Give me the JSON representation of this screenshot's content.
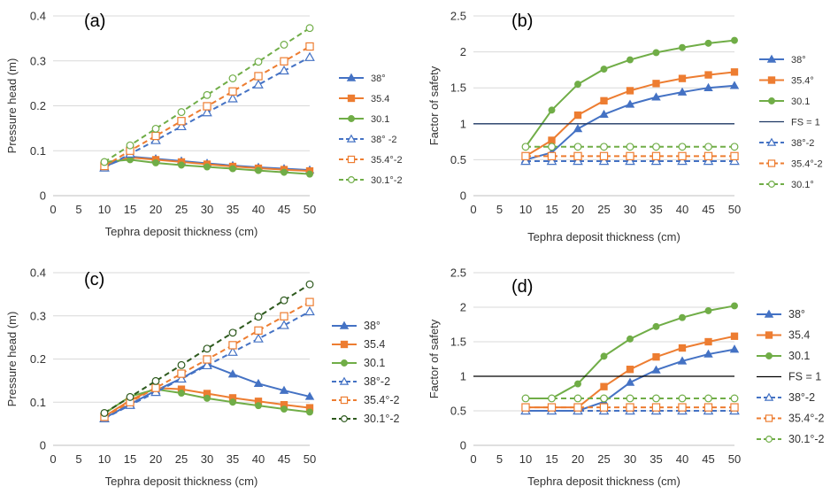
{
  "colors": {
    "blue": "#4472C4",
    "orange": "#ED7D31",
    "green": "#70AD47",
    "darkgreen": "#2E5A1E",
    "navy": "#1F3864",
    "black": "#000000",
    "grid": "#D9D9D9",
    "axis": "#BFBFBF"
  },
  "chart_data": [
    {
      "id": "a",
      "type": "line",
      "panel_label": "(a)",
      "xlabel": "Tephra deposit thickness (cm)",
      "ylabel": "Pressure head (m)",
      "xlim": [
        0,
        50
      ],
      "ylim": [
        0,
        0.4
      ],
      "x_ticks": [
        "0",
        "5",
        "10",
        "15",
        "20",
        "25",
        "30",
        "35",
        "40",
        "45",
        "50"
      ],
      "y_ticks": [
        "0",
        "0.1",
        "0.2",
        "0.3",
        "0.4"
      ],
      "x": [
        10,
        15,
        20,
        25,
        30,
        35,
        40,
        45,
        50
      ],
      "legend_position": "right",
      "series": [
        {
          "name": "38°",
          "color": "blue",
          "dash": false,
          "marker": "triangle",
          "filled": true,
          "values": [
            0.065,
            0.087,
            0.082,
            0.077,
            0.072,
            0.067,
            0.063,
            0.06,
            0.057
          ]
        },
        {
          "name": "35.4",
          "color": "orange",
          "dash": false,
          "marker": "square",
          "filled": true,
          "values": [
            0.07,
            0.085,
            0.08,
            0.075,
            0.07,
            0.065,
            0.061,
            0.058,
            0.055
          ]
        },
        {
          "name": "30.1",
          "color": "green",
          "dash": false,
          "marker": "circle",
          "filled": true,
          "values": [
            0.075,
            0.08,
            0.073,
            0.068,
            0.064,
            0.06,
            0.056,
            0.052,
            0.048
          ]
        },
        {
          "name": "38° -2",
          "color": "blue",
          "dash": true,
          "marker": "triangle",
          "filled": false,
          "values": [
            0.062,
            0.093,
            0.123,
            0.154,
            0.185,
            0.216,
            0.247,
            0.278,
            0.308
          ]
        },
        {
          "name": "35.4°-2",
          "color": "orange",
          "dash": true,
          "marker": "square",
          "filled": false,
          "values": [
            0.066,
            0.1,
            0.133,
            0.166,
            0.199,
            0.232,
            0.266,
            0.299,
            0.332
          ]
        },
        {
          "name": "30.1°-2",
          "color": "green",
          "dash": true,
          "marker": "circle",
          "filled": false,
          "values": [
            0.075,
            0.112,
            0.149,
            0.186,
            0.224,
            0.261,
            0.298,
            0.336,
            0.373
          ]
        }
      ]
    },
    {
      "id": "b",
      "type": "line",
      "panel_label": "(b)",
      "xlabel": "Tephra deposit thickness (cm)",
      "ylabel": "Factor of safety",
      "xlim": [
        0,
        50
      ],
      "ylim": [
        0,
        2.5
      ],
      "x_ticks": [
        "0",
        "5",
        "10",
        "15",
        "20",
        "25",
        "30",
        "35",
        "40",
        "45",
        "50"
      ],
      "y_ticks": [
        "0",
        "0.5",
        "1",
        "1.5",
        "2",
        "2.5"
      ],
      "x": [
        10,
        15,
        20,
        25,
        30,
        35,
        40,
        45,
        50
      ],
      "legend_position": "right",
      "series": [
        {
          "name": "38°",
          "color": "blue",
          "dash": false,
          "marker": "triangle",
          "filled": true,
          "values": [
            0.5,
            0.6,
            0.93,
            1.13,
            1.27,
            1.37,
            1.44,
            1.5,
            1.53
          ]
        },
        {
          "name": "35.4°",
          "color": "orange",
          "dash": false,
          "marker": "square",
          "filled": true,
          "values": [
            0.55,
            0.77,
            1.12,
            1.32,
            1.46,
            1.56,
            1.63,
            1.68,
            1.72
          ]
        },
        {
          "name": "30.1",
          "color": "green",
          "dash": false,
          "marker": "circle",
          "filled": true,
          "values": [
            0.68,
            1.19,
            1.55,
            1.76,
            1.89,
            1.99,
            2.06,
            2.12,
            2.16
          ]
        },
        {
          "name": "FS = 1",
          "color": "navy",
          "dash": false,
          "marker": "none",
          "filled": false,
          "values": [
            1,
            1,
            1,
            1,
            1,
            1,
            1,
            1,
            1
          ]
        },
        {
          "name": "38°-2",
          "color": "blue",
          "dash": true,
          "marker": "triangle",
          "filled": false,
          "values": [
            0.48,
            0.48,
            0.48,
            0.48,
            0.48,
            0.48,
            0.48,
            0.48,
            0.48
          ]
        },
        {
          "name": "35.4°-2",
          "color": "orange",
          "dash": true,
          "marker": "square",
          "filled": false,
          "values": [
            0.55,
            0.55,
            0.55,
            0.55,
            0.55,
            0.55,
            0.55,
            0.55,
            0.55
          ]
        },
        {
          "name": "30.1°",
          "color": "green",
          "dash": true,
          "marker": "circle",
          "filled": false,
          "values": [
            0.68,
            0.68,
            0.68,
            0.68,
            0.68,
            0.68,
            0.68,
            0.68,
            0.68
          ]
        }
      ]
    },
    {
      "id": "c",
      "type": "line",
      "panel_label": "(c)",
      "xlabel": "Tephra deposit thickness (cm)",
      "ylabel": "Pressure head (m)",
      "xlim": [
        0,
        50
      ],
      "ylim": [
        0,
        0.4
      ],
      "x_ticks": [
        "0",
        "5",
        "10",
        "15",
        "20",
        "25",
        "30",
        "35",
        "40",
        "45",
        "50"
      ],
      "y_ticks": [
        "0",
        "0.1",
        "0.2",
        "0.3",
        "0.4"
      ],
      "x": [
        10,
        15,
        20,
        25,
        30,
        35,
        40,
        45,
        50
      ],
      "legend_position": "right",
      "series": [
        {
          "name": "38°",
          "color": "blue",
          "dash": false,
          "marker": "triangle",
          "filled": true,
          "values": [
            0.063,
            0.095,
            0.127,
            0.155,
            0.188,
            0.165,
            0.143,
            0.127,
            0.113
          ]
        },
        {
          "name": "35.4",
          "color": "orange",
          "dash": false,
          "marker": "square",
          "filled": true,
          "values": [
            0.067,
            0.104,
            0.133,
            0.13,
            0.12,
            0.11,
            0.102,
            0.094,
            0.087
          ]
        },
        {
          "name": "30.1",
          "color": "green",
          "dash": false,
          "marker": "circle",
          "filled": true,
          "values": [
            0.074,
            0.113,
            0.13,
            0.121,
            0.109,
            0.1,
            0.092,
            0.084,
            0.077
          ]
        },
        {
          "name": "38°-2",
          "color": "blue",
          "dash": true,
          "marker": "triangle",
          "filled": false,
          "values": [
            0.062,
            0.093,
            0.123,
            0.154,
            0.185,
            0.216,
            0.247,
            0.278,
            0.31
          ]
        },
        {
          "name": "35.4°-2",
          "color": "orange",
          "dash": true,
          "marker": "square",
          "filled": false,
          "values": [
            0.066,
            0.1,
            0.133,
            0.166,
            0.199,
            0.232,
            0.266,
            0.299,
            0.332
          ]
        },
        {
          "name": "30.1°-2",
          "color": "darkgreen",
          "dash": true,
          "marker": "circle",
          "filled": false,
          "values": [
            0.075,
            0.112,
            0.149,
            0.186,
            0.224,
            0.261,
            0.298,
            0.336,
            0.373
          ]
        }
      ]
    },
    {
      "id": "d",
      "type": "line",
      "panel_label": "(d)",
      "xlabel": "Tephra deposit thickness (cm)",
      "ylabel": "Factor of safety",
      "xlim": [
        0,
        50
      ],
      "ylim": [
        0,
        2.5
      ],
      "x_ticks": [
        "0",
        "5",
        "10",
        "15",
        "20",
        "25",
        "30",
        "35",
        "40",
        "45",
        "50"
      ],
      "y_ticks": [
        "0",
        "0.5",
        "1",
        "1.5",
        "2",
        "2.5"
      ],
      "x": [
        10,
        15,
        20,
        25,
        30,
        35,
        40,
        45,
        50
      ],
      "legend_position": "right",
      "series": [
        {
          "name": "38°",
          "color": "blue",
          "dash": false,
          "marker": "triangle",
          "filled": true,
          "values": [
            0.5,
            0.5,
            0.5,
            0.63,
            0.91,
            1.09,
            1.22,
            1.32,
            1.39
          ]
        },
        {
          "name": "35.4",
          "color": "orange",
          "dash": false,
          "marker": "square",
          "filled": true,
          "values": [
            0.55,
            0.55,
            0.55,
            0.85,
            1.1,
            1.28,
            1.41,
            1.5,
            1.58
          ]
        },
        {
          "name": "30.1",
          "color": "green",
          "dash": false,
          "marker": "circle",
          "filled": true,
          "values": [
            0.68,
            0.68,
            0.89,
            1.29,
            1.54,
            1.72,
            1.85,
            1.95,
            2.02
          ]
        },
        {
          "name": "FS = 1",
          "color": "black",
          "dash": false,
          "marker": "none",
          "filled": false,
          "values": [
            1,
            1,
            1,
            1,
            1,
            1,
            1,
            1,
            1
          ]
        },
        {
          "name": "38°-2",
          "color": "blue",
          "dash": true,
          "marker": "triangle",
          "filled": false,
          "values": [
            0.5,
            0.5,
            0.5,
            0.5,
            0.5,
            0.5,
            0.5,
            0.5,
            0.5
          ]
        },
        {
          "name": "35.4°-2",
          "color": "orange",
          "dash": true,
          "marker": "square",
          "filled": false,
          "values": [
            0.55,
            0.55,
            0.55,
            0.55,
            0.55,
            0.55,
            0.55,
            0.55,
            0.55
          ]
        },
        {
          "name": "30.1°-2",
          "color": "green",
          "dash": true,
          "marker": "circle",
          "filled": false,
          "values": [
            0.68,
            0.68,
            0.68,
            0.68,
            0.68,
            0.68,
            0.68,
            0.68,
            0.68
          ]
        }
      ]
    }
  ]
}
